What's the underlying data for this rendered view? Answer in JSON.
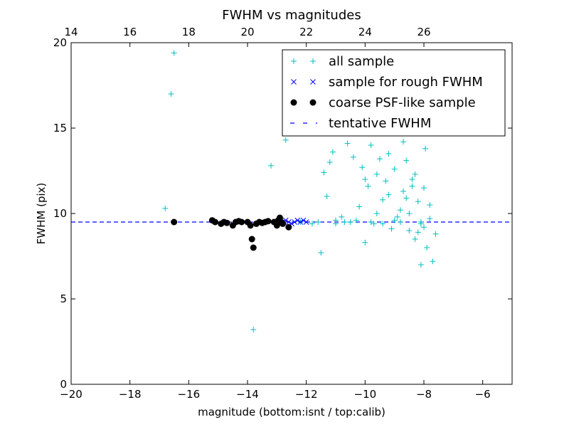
{
  "chart_data": {
    "type": "scatter",
    "title": "FWHM vs magnitudes",
    "xlabel": "magnitude (bottom:isnt / top:calib)",
    "ylabel": "FWHM (pix)",
    "xlim": [
      -20,
      -5
    ],
    "ylim": [
      0,
      20
    ],
    "x_ticks": [
      -20,
      -18,
      -16,
      -14,
      -12,
      -10,
      -8,
      -6
    ],
    "x_tick_labels": [
      "−20",
      "−18",
      "−16",
      "−14",
      "−12",
      "−10",
      "−8",
      "−6"
    ],
    "y_ticks": [
      0,
      5,
      10,
      15,
      20
    ],
    "y_tick_labels": [
      "0",
      "5",
      "10",
      "15",
      "20"
    ],
    "top_axis": {
      "offset": 34.0,
      "ticks": [
        14,
        16,
        18,
        20,
        22,
        24,
        26
      ],
      "tick_labels": [
        "14",
        "16",
        "18",
        "20",
        "22",
        "24",
        "26"
      ]
    },
    "grid": false,
    "legend_position": "top-right",
    "colors": {
      "all_sample": "#00bfbf",
      "rough": "#0000ff",
      "coarse": "#000000",
      "tentative": "#0000ff"
    },
    "series": [
      {
        "name": "all sample",
        "marker": "+",
        "points": [
          [
            -16.6,
            17.0
          ],
          [
            -16.5,
            19.4
          ],
          [
            -16.8,
            10.3
          ],
          [
            -13.8,
            3.2
          ],
          [
            -13.2,
            12.8
          ],
          [
            -12.7,
            14.3
          ],
          [
            -12.5,
            14.9
          ],
          [
            -11.5,
            7.7
          ],
          [
            -11.4,
            12.4
          ],
          [
            -11.3,
            11.0
          ],
          [
            -11.2,
            13.0
          ],
          [
            -11.1,
            13.6
          ],
          [
            -11.0,
            9.6
          ],
          [
            -10.8,
            9.8
          ],
          [
            -10.6,
            14.1
          ],
          [
            -10.4,
            13.3
          ],
          [
            -10.2,
            10.4
          ],
          [
            -10.1,
            12.7
          ],
          [
            -10.0,
            8.3
          ],
          [
            -9.9,
            11.6
          ],
          [
            -9.8,
            14.0
          ],
          [
            -9.7,
            9.4
          ],
          [
            -9.6,
            12.3
          ],
          [
            -9.5,
            15.0
          ],
          [
            -9.4,
            10.8
          ],
          [
            -9.3,
            11.9
          ],
          [
            -9.2,
            13.5
          ],
          [
            -9.1,
            9.1
          ],
          [
            -9.0,
            12.6
          ],
          [
            -8.9,
            14.8
          ],
          [
            -8.8,
            10.2
          ],
          [
            -8.7,
            11.3
          ],
          [
            -8.6,
            13.1
          ],
          [
            -8.5,
            9.0
          ],
          [
            -8.4,
            12.0
          ],
          [
            -8.3,
            8.5
          ],
          [
            -8.2,
            10.7
          ],
          [
            -8.1,
            7.0
          ],
          [
            -8.0,
            11.5
          ],
          [
            -7.95,
            13.8
          ],
          [
            -7.9,
            8.0
          ],
          [
            -7.8,
            10.5
          ],
          [
            -7.7,
            7.2
          ],
          [
            -7.6,
            8.8
          ],
          [
            -9.6,
            10.0
          ],
          [
            -9.2,
            11.1
          ],
          [
            -8.9,
            9.8
          ],
          [
            -8.6,
            10.9
          ],
          [
            -8.3,
            12.3
          ],
          [
            -8.1,
            9.4
          ],
          [
            -10.0,
            12.0
          ],
          [
            -9.5,
            13.2
          ],
          [
            -8.7,
            14.2
          ],
          [
            -8.4,
            11.6
          ],
          [
            -8.2,
            8.9
          ],
          [
            -10.5,
            9.5
          ],
          [
            -9.0,
            9.6
          ],
          [
            -8.5,
            10.0
          ],
          [
            -8.0,
            9.2
          ],
          [
            -7.8,
            9.7
          ],
          [
            -12.2,
            9.5
          ],
          [
            -11.8,
            9.4
          ],
          [
            -11.6,
            9.5
          ],
          [
            -11.0,
            9.4
          ],
          [
            -10.7,
            9.5
          ],
          [
            -10.3,
            9.6
          ],
          [
            -9.8,
            9.5
          ],
          [
            -9.4,
            9.4
          ],
          [
            -8.8,
            9.5
          ],
          [
            -8.1,
            9.5
          ]
        ]
      },
      {
        "name": "sample for rough FWHM",
        "marker": "x",
        "points": [
          [
            -12.9,
            9.4
          ],
          [
            -12.8,
            9.5
          ],
          [
            -12.7,
            9.6
          ],
          [
            -12.6,
            9.5
          ],
          [
            -12.5,
            9.4
          ],
          [
            -12.4,
            9.5
          ],
          [
            -12.3,
            9.6
          ],
          [
            -12.2,
            9.5
          ],
          [
            -12.1,
            9.6
          ],
          [
            -12.0,
            9.5
          ]
        ]
      },
      {
        "name": "coarse PSF-like sample",
        "marker": "o",
        "points": [
          [
            -16.5,
            9.5
          ],
          [
            -15.2,
            9.6
          ],
          [
            -15.1,
            9.5
          ],
          [
            -14.9,
            9.4
          ],
          [
            -14.8,
            9.5
          ],
          [
            -14.7,
            9.45
          ],
          [
            -14.5,
            9.3
          ],
          [
            -14.4,
            9.5
          ],
          [
            -14.3,
            9.55
          ],
          [
            -14.2,
            9.5
          ],
          [
            -14.0,
            9.5
          ],
          [
            -13.9,
            9.3
          ],
          [
            -13.85,
            8.5
          ],
          [
            -13.8,
            8.0
          ],
          [
            -13.7,
            9.4
          ],
          [
            -13.6,
            9.5
          ],
          [
            -13.5,
            9.45
          ],
          [
            -13.4,
            9.5
          ],
          [
            -13.3,
            9.55
          ],
          [
            -13.1,
            9.5
          ],
          [
            -13.0,
            9.3
          ],
          [
            -12.95,
            9.6
          ],
          [
            -12.9,
            9.75
          ],
          [
            -12.85,
            9.5
          ],
          [
            -12.8,
            9.4
          ],
          [
            -12.6,
            9.2
          ]
        ]
      }
    ],
    "hlines": [
      {
        "name": "tentative FWHM",
        "y": 9.5,
        "style": "dashed"
      }
    ]
  }
}
